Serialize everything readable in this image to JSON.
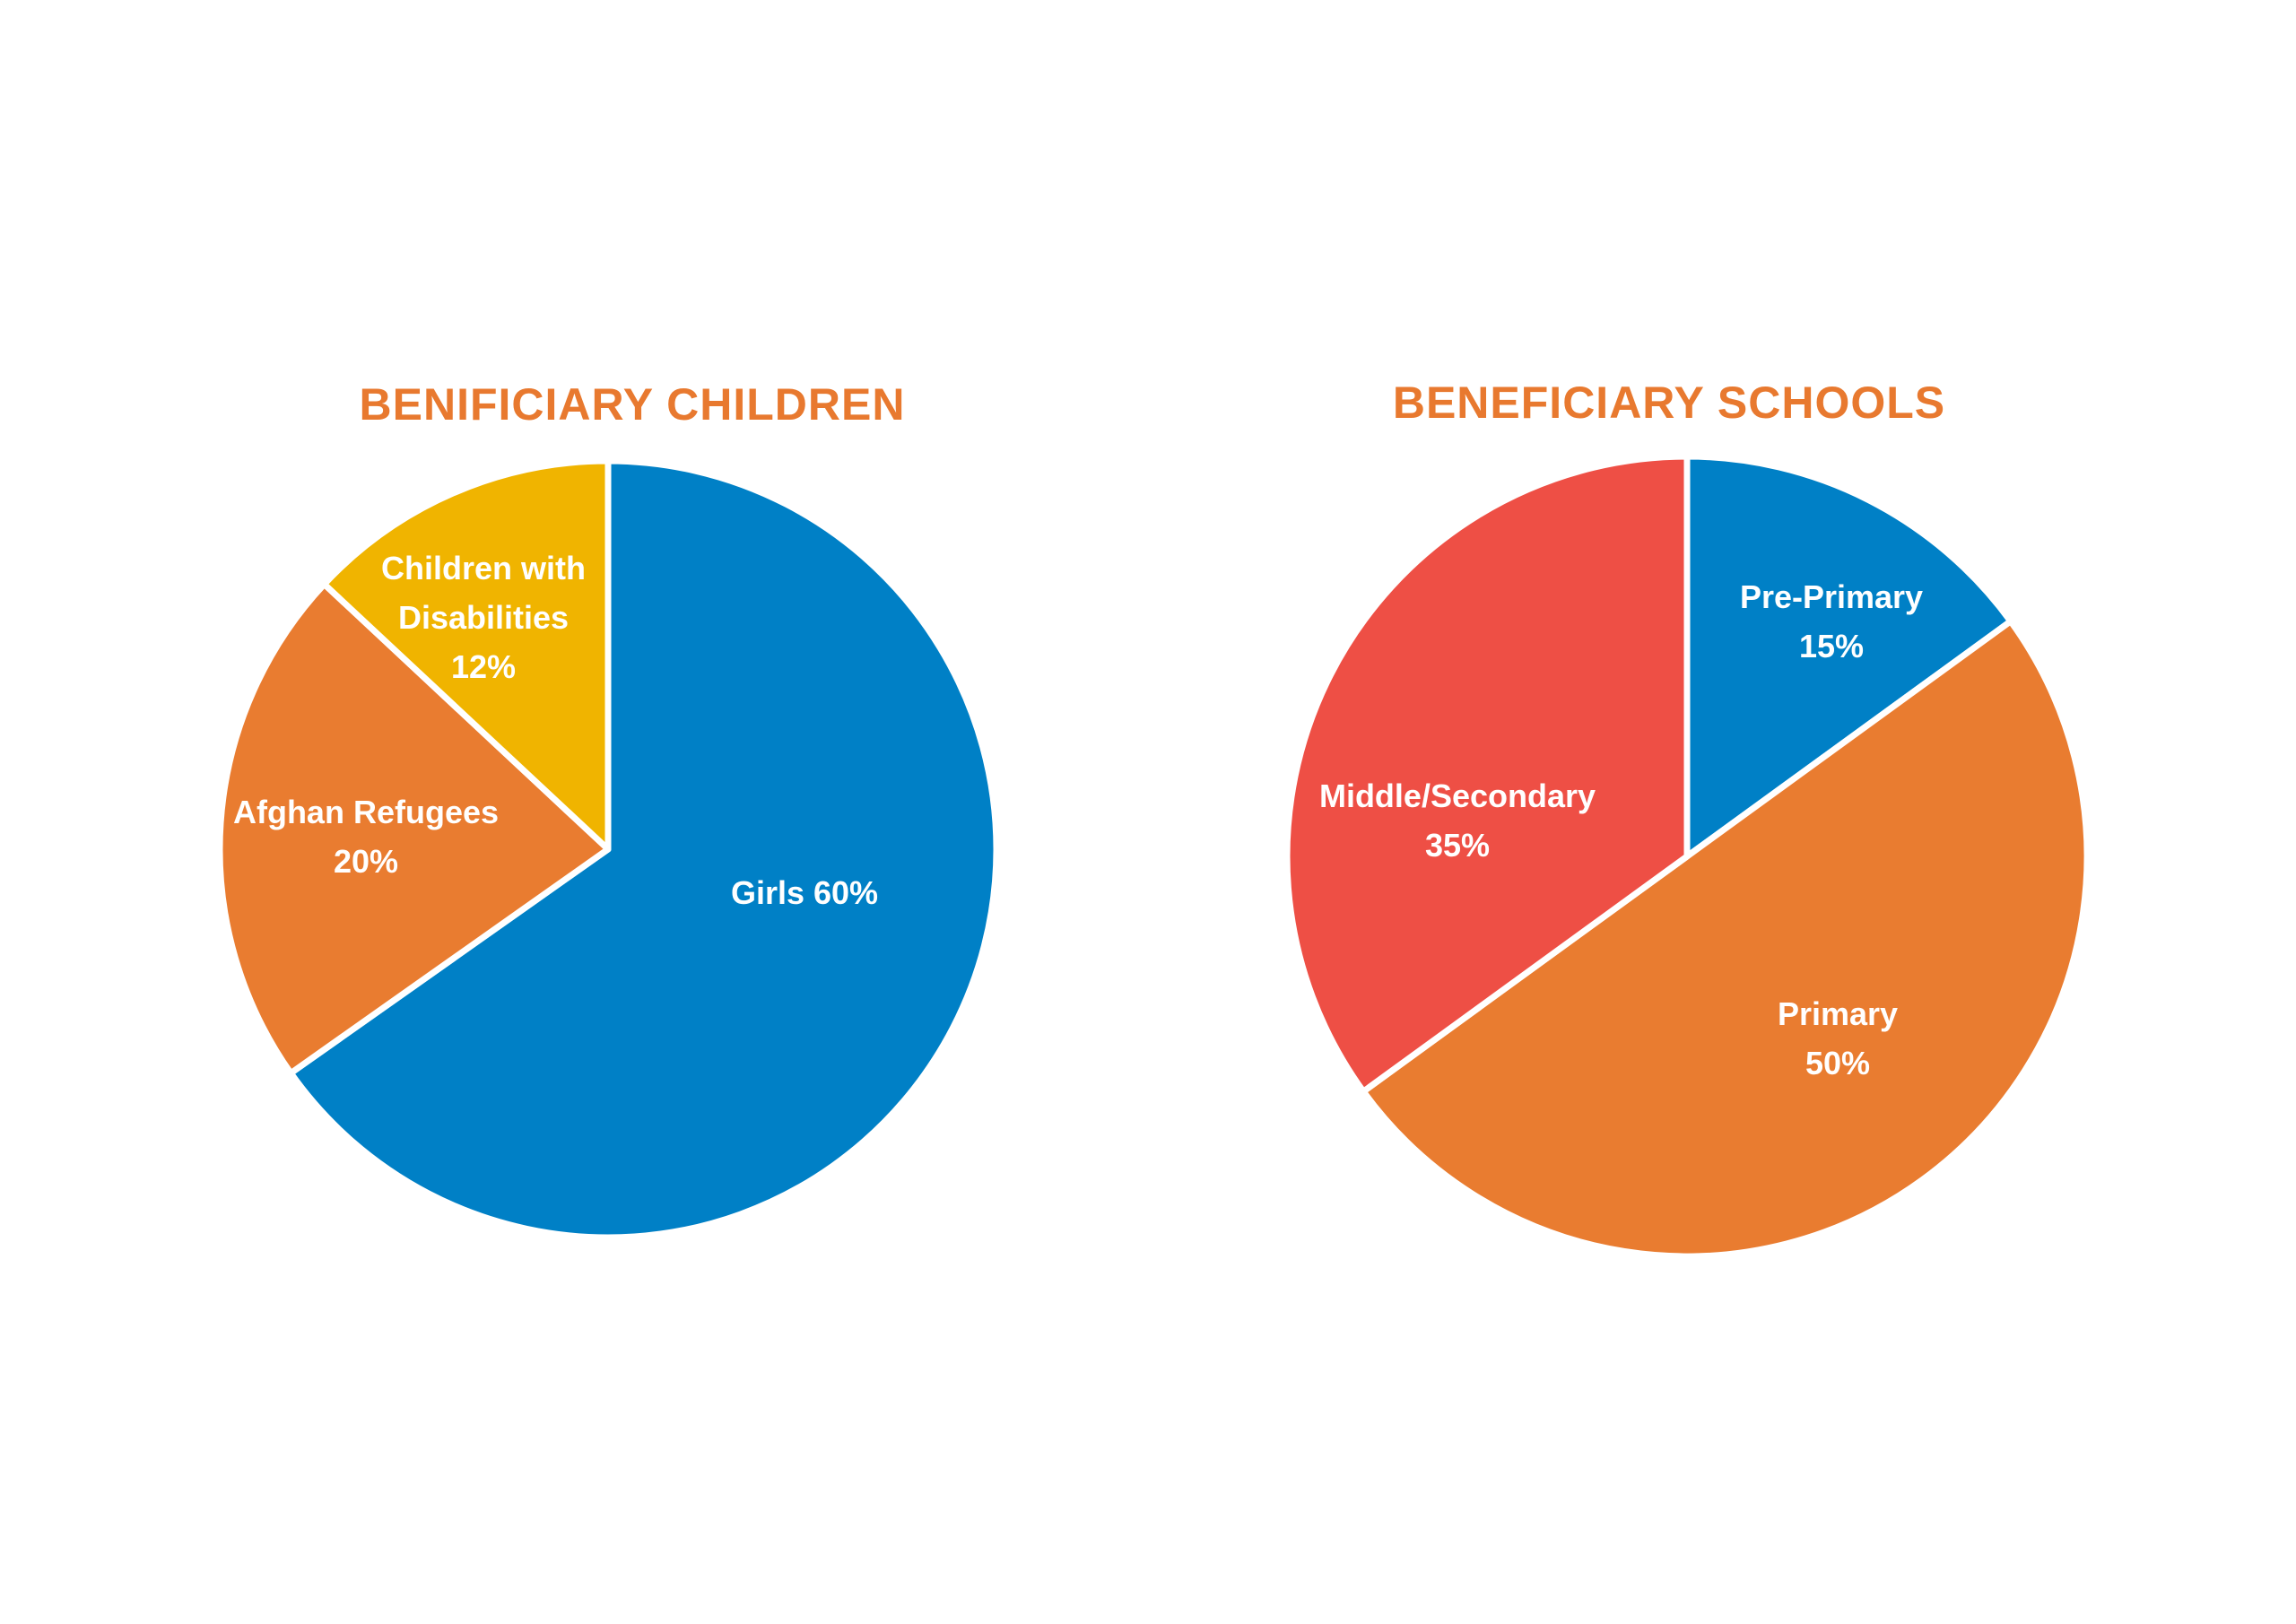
{
  "chart_data": [
    {
      "type": "pie",
      "title": "BENIFICIARY CHILDREN",
      "slices": [
        {
          "label": "Girls",
          "value": 60,
          "value_label": "60%",
          "color": "#0080C6"
        },
        {
          "label": "Afghan Refugees",
          "value": 20,
          "value_label": "20%",
          "color": "#E97C30"
        },
        {
          "label": "Children with Disabilities",
          "value": 12,
          "value_label": "12%",
          "color": "#F0B400"
        }
      ],
      "start": "12 o'clock, clockwise"
    },
    {
      "type": "pie",
      "title": "BENEFICIARY SCHOOLS",
      "slices": [
        {
          "label": "Pre-Primary",
          "value": 15,
          "value_label": "15%",
          "color": "#0080C6"
        },
        {
          "label": "Primary",
          "value": 50,
          "value_label": "50%",
          "color": "#E97C30"
        },
        {
          "label": "Middle/Secondary",
          "value": 35,
          "value_label": "35%",
          "color": "#EE4F45"
        }
      ],
      "start": "12 o'clock, clockwise"
    }
  ]
}
